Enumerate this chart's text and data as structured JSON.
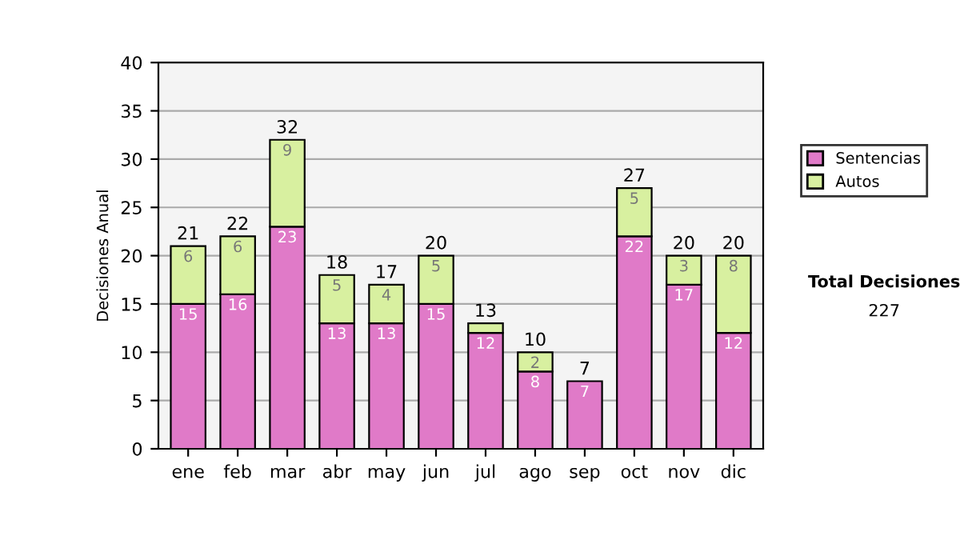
{
  "chart_data": {
    "type": "bar",
    "stacked": true,
    "ylabel": "Decisiones Anual",
    "categories": [
      "ene",
      "feb",
      "mar",
      "abr",
      "may",
      "jun",
      "jul",
      "ago",
      "sep",
      "oct",
      "nov",
      "dic"
    ],
    "series": [
      {
        "name": "Sentencias",
        "color": "#e07ac8",
        "values": [
          15,
          16,
          23,
          13,
          13,
          15,
          12,
          8,
          7,
          22,
          17,
          12
        ],
        "value_labels": [
          "15",
          "16",
          "23",
          "13",
          "13",
          "15",
          "12",
          "8",
          "7",
          "22",
          "17",
          "12"
        ]
      },
      {
        "name": "Autos",
        "color": "#d8f0a0",
        "values": [
          6,
          6,
          9,
          5,
          4,
          5,
          1,
          2,
          null,
          5,
          3,
          8
        ],
        "value_labels": [
          "6",
          "6",
          "9",
          "5",
          "4",
          "5",
          null,
          "2",
          null,
          "5",
          "3",
          "8"
        ]
      }
    ],
    "totals": [
      "21",
      "22",
      "32",
      "18",
      "17",
      "20",
      "13",
      "10",
      "7",
      "27",
      "20",
      "20"
    ],
    "ylim": [
      0,
      40
    ],
    "yticks": [
      0,
      5,
      10,
      15,
      20,
      25,
      30,
      35,
      40
    ],
    "grid": "y",
    "legend": "right",
    "annotations": [
      "Total Decisiones",
      "227"
    ]
  }
}
